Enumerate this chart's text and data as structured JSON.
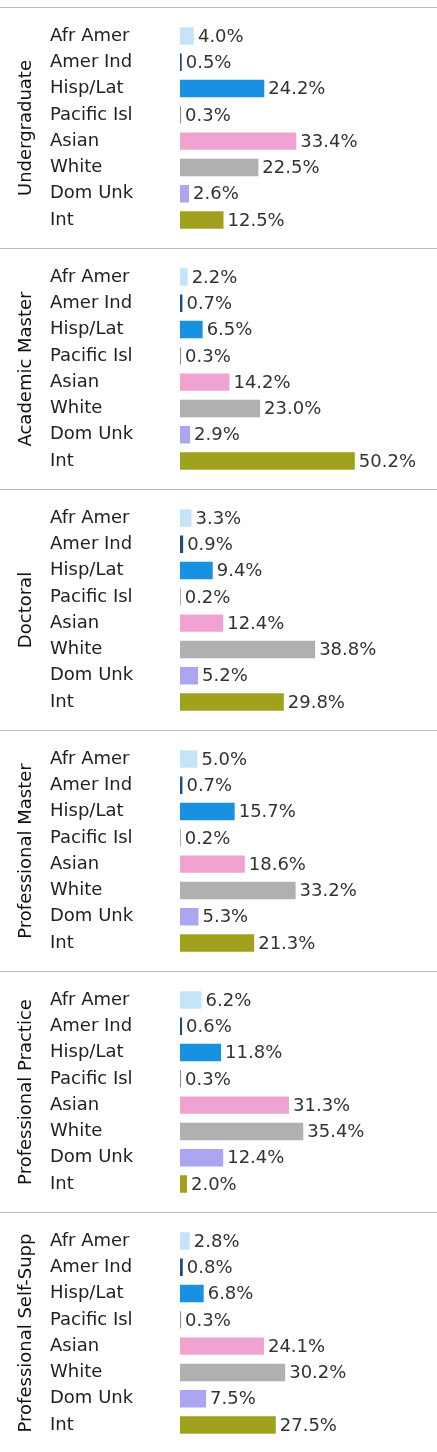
{
  "chart_data": [
    {
      "type": "bar",
      "orientation": "horizontal",
      "title": "Undergraduate",
      "tick_labels": "y",
      "categories": [
        "Afr Amer",
        "Amer Ind",
        "Hisp/Lat",
        "Pacific Isl",
        "Asian",
        "White",
        "Dom Unk",
        "Int"
      ],
      "values": [
        4.0,
        0.5,
        24.2,
        0.3,
        33.4,
        22.5,
        2.6,
        12.5
      ],
      "value_labels": [
        "4.0%",
        "0.5%",
        "24.2%",
        "0.3%",
        "33.4%",
        "22.5%",
        "2.6%",
        "12.5%"
      ],
      "colors": [
        "#c6e4f8",
        "#1f4e79",
        "#1891e0",
        "#8c8c8c",
        "#f0a3d0",
        "#b0b0b0",
        "#aaa6f0",
        "#a0a21e"
      ]
    },
    {
      "type": "bar",
      "orientation": "horizontal",
      "title": "Academic Master",
      "tick_labels": "y",
      "categories": [
        "Afr Amer",
        "Amer Ind",
        "Hisp/Lat",
        "Pacific Isl",
        "Asian",
        "White",
        "Dom Unk",
        "Int"
      ],
      "values": [
        2.2,
        0.7,
        6.5,
        0.3,
        14.2,
        23.0,
        2.9,
        50.2
      ],
      "value_labels": [
        "2.2%",
        "0.7%",
        "6.5%",
        "0.3%",
        "14.2%",
        "23.0%",
        "2.9%",
        "50.2%"
      ],
      "colors": [
        "#c6e4f8",
        "#1f4e79",
        "#1891e0",
        "#8c8c8c",
        "#f0a3d0",
        "#b0b0b0",
        "#aaa6f0",
        "#a0a21e"
      ]
    },
    {
      "type": "bar",
      "orientation": "horizontal",
      "title": "Doctoral",
      "tick_labels": "y",
      "categories": [
        "Afr Amer",
        "Amer Ind",
        "Hisp/Lat",
        "Pacific Isl",
        "Asian",
        "White",
        "Dom Unk",
        "Int"
      ],
      "values": [
        3.3,
        0.9,
        9.4,
        0.2,
        12.4,
        38.8,
        5.2,
        29.8
      ],
      "value_labels": [
        "3.3%",
        "0.9%",
        "9.4%",
        "0.2%",
        "12.4%",
        "38.8%",
        "5.2%",
        "29.8%"
      ],
      "colors": [
        "#c6e4f8",
        "#1f4e79",
        "#1891e0",
        "#8c8c8c",
        "#f0a3d0",
        "#b0b0b0",
        "#aaa6f0",
        "#a0a21e"
      ]
    },
    {
      "type": "bar",
      "orientation": "horizontal",
      "title": "Professional Master",
      "tick_labels": "y",
      "categories": [
        "Afr Amer",
        "Amer Ind",
        "Hisp/Lat",
        "Pacific Isl",
        "Asian",
        "White",
        "Dom Unk",
        "Int"
      ],
      "values": [
        5.0,
        0.7,
        15.7,
        0.2,
        18.6,
        33.2,
        5.3,
        21.3
      ],
      "value_labels": [
        "5.0%",
        "0.7%",
        "15.7%",
        "0.2%",
        "18.6%",
        "33.2%",
        "5.3%",
        "21.3%"
      ],
      "colors": [
        "#c6e4f8",
        "#1f4e79",
        "#1891e0",
        "#8c8c8c",
        "#f0a3d0",
        "#b0b0b0",
        "#aaa6f0",
        "#a0a21e"
      ]
    },
    {
      "type": "bar",
      "orientation": "horizontal",
      "title": "Professional Practice",
      "tick_labels": "y",
      "categories": [
        "Afr Amer",
        "Amer Ind",
        "Hisp/Lat",
        "Pacific Isl",
        "Asian",
        "White",
        "Dom Unk",
        "Int"
      ],
      "values": [
        6.2,
        0.6,
        11.8,
        0.3,
        31.3,
        35.4,
        12.4,
        2.0
      ],
      "value_labels": [
        "6.2%",
        "0.6%",
        "11.8%",
        "0.3%",
        "31.3%",
        "35.4%",
        "12.4%",
        "2.0%"
      ],
      "colors": [
        "#c6e4f8",
        "#1f4e79",
        "#1891e0",
        "#8c8c8c",
        "#f0a3d0",
        "#b0b0b0",
        "#aaa6f0",
        "#a0a21e"
      ]
    },
    {
      "type": "bar",
      "orientation": "horizontal",
      "title": "Professional Self-Supp",
      "tick_labels": "y",
      "categories": [
        "Afr Amer",
        "Amer Ind",
        "Hisp/Lat",
        "Pacific Isl",
        "Asian",
        "White",
        "Dom Unk",
        "Int"
      ],
      "values": [
        2.8,
        0.8,
        6.8,
        0.3,
        24.1,
        30.2,
        7.5,
        27.5
      ],
      "value_labels": [
        "2.8%",
        "0.8%",
        "6.8%",
        "0.3%",
        "24.1%",
        "30.2%",
        "7.5%",
        "27.5%"
      ],
      "colors": [
        "#c6e4f8",
        "#1f4e79",
        "#1891e0",
        "#8c8c8c",
        "#f0a3d0",
        "#b0b0b0",
        "#aaa6f0",
        "#a0a21e"
      ]
    }
  ]
}
